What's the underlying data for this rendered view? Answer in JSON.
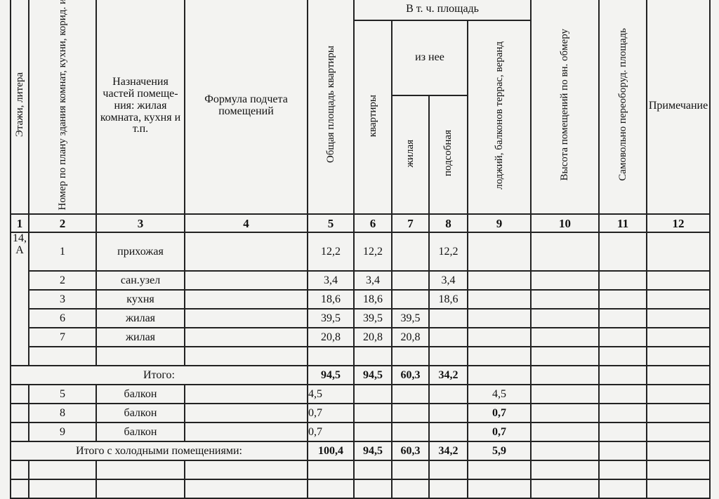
{
  "headers": {
    "c1": "Этажи, литера",
    "c2": "Номер по плану здания комнат, кухни, корид. и",
    "c3": "Назначения частей помеще-ния: жилая комната, кухня и т.п.",
    "c4": "Формула подчета помещений",
    "c5": "Общая площадь квартиры",
    "group": "В т. ч. площадь",
    "c6": "квартиры",
    "sub": "из нее",
    "c7": "жилая",
    "c8": "подсобная",
    "c9": "лоджий, балконов террас, веранд",
    "c10": "Высота помещений по вн. обмеру",
    "c11": "Самовольно переоборуд. площадь",
    "c12": "Примечание"
  },
  "col_numbers": [
    "1",
    "2",
    "3",
    "4",
    "5",
    "6",
    "7",
    "8",
    "9",
    "10",
    "11",
    "12"
  ],
  "floor": "14, А",
  "rows": [
    {
      "n": "1",
      "name": "прихожая",
      "total": "12,2",
      "flat": "12,2",
      "living": "",
      "aux": "12,2",
      "balcony": ""
    },
    {
      "n": "2",
      "name": "сан.узел",
      "total": "3,4",
      "flat": "3,4",
      "living": "",
      "aux": "3,4",
      "balcony": ""
    },
    {
      "n": "3",
      "name": "кухня",
      "total": "18,6",
      "flat": "18,6",
      "living": "",
      "aux": "18,6",
      "balcony": ""
    },
    {
      "n": "6",
      "name": "жилая",
      "total": "39,5",
      "flat": "39,5",
      "living": "39,5",
      "aux": "",
      "balcony": ""
    },
    {
      "n": "7",
      "name": "жилая",
      "total": "20,8",
      "flat": "20,8",
      "living": "20,8",
      "aux": "",
      "balcony": ""
    }
  ],
  "subtotal": {
    "label": "Итого:",
    "total": "94,5",
    "flat": "94,5",
    "living": "60,3",
    "aux": "34,2"
  },
  "balconies": [
    {
      "n": "5",
      "name": "балкон",
      "total": "4,5",
      "balcony": "4,5"
    },
    {
      "n": "8",
      "name": "балкон",
      "total": "0,7",
      "balcony": "0,7"
    },
    {
      "n": "9",
      "name": "балкон",
      "total": "0,7",
      "balcony": "0,7"
    }
  ],
  "grand_total": {
    "label": "Итого с холодными помещениями:",
    "total": "100,4",
    "flat": "94,5",
    "living": "60,3",
    "aux": "34,2",
    "balcony": "5,9"
  }
}
